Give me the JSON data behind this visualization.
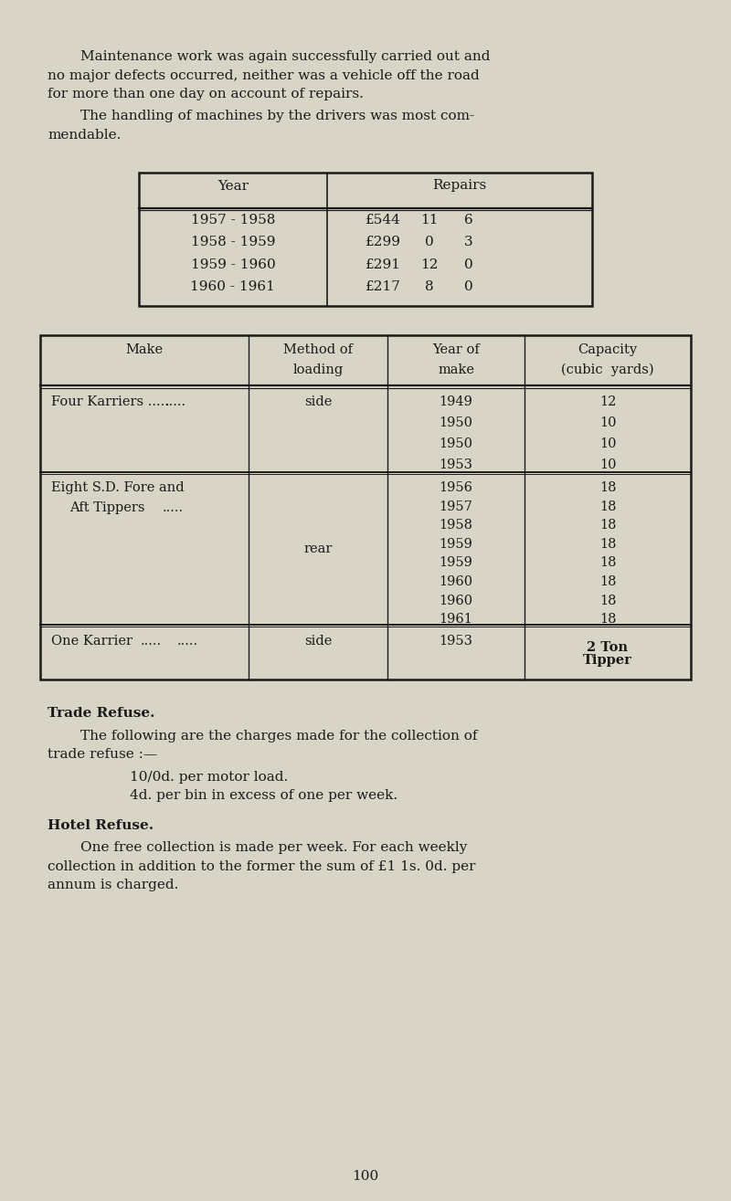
{
  "bg_color": "#d8d5c6",
  "text_color": "#1a1a1a",
  "page_width": 8.0,
  "page_height": 13.15,
  "para1_line1": "Maintenance work was again successfully carried out and",
  "para1_line2": "no major defects occurred, neither was a vehicle off the road",
  "para1_line3": "for more than one day on account of repairs.",
  "para2_line1": "The handling of machines by the drivers was most com-",
  "para2_line2": "mendable.",
  "repairs_years": [
    "1957 - 1958",
    "1958 - 1959",
    "1959 - 1960",
    "1960 - 1961"
  ],
  "repairs_pounds": [
    "£544",
    "£299",
    "£291",
    "£217"
  ],
  "repairs_shillings": [
    "11",
    "0",
    "12",
    "8"
  ],
  "repairs_pence": [
    "6",
    "3",
    "0",
    "0"
  ],
  "veh_row0_make_line1": "Four Karriers .....",
  "veh_row0_make_line2": "......",
  "veh_row0_method": "side",
  "veh_row0_years": [
    "1949",
    "1950",
    "1950",
    "1953"
  ],
  "veh_row0_caps": [
    "12",
    "10",
    "10",
    "10"
  ],
  "veh_row1_make_line1": "Eight S.D. Fore and",
  "veh_row1_make_line2": "  Aft Tippers     .....",
  "veh_row1_method": "rear",
  "veh_row1_years": [
    "1956",
    "1957",
    "1958",
    "1959",
    "1959",
    "1960",
    "1960",
    "1961"
  ],
  "veh_row1_caps": [
    "18",
    "18",
    "18",
    "18",
    "18",
    "18",
    "18",
    "18"
  ],
  "veh_row2_make": "One Karrier    .....     .....",
  "veh_row2_method": "side",
  "veh_row2_year": "1953",
  "veh_row2_cap_line1": "2 Ton",
  "veh_row2_cap_line2": "Tipper",
  "trade_heading": "Trade Refuse.",
  "trade_para_line1": "The following are the charges made for the collection of",
  "trade_para_line2": "trade refuse :—",
  "trade_item1": "10/0d. per motor load.",
  "trade_item2": "4d. per bin in excess of one per week.",
  "hotel_heading": "Hotel Refuse.",
  "hotel_para_line1": "One free collection is made per week. For each weekly",
  "hotel_para_line2": "collection in addition to the former the sum of £1 1s. 0d. per",
  "hotel_para_line3": "annum is charged.",
  "page_number": "100"
}
